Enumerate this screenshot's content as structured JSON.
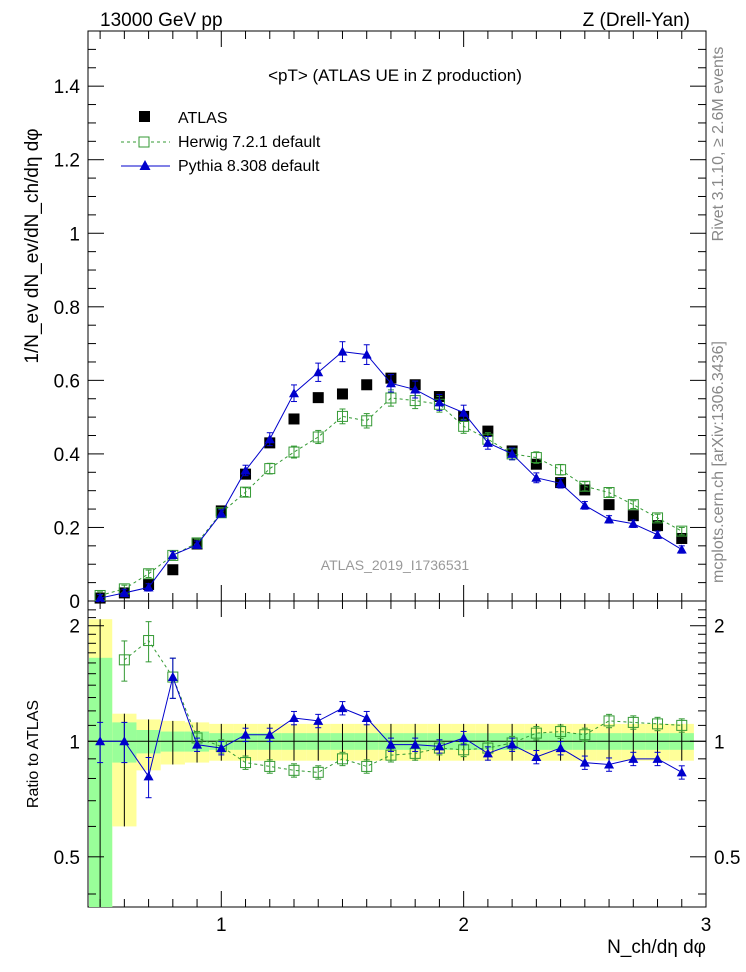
{
  "header": {
    "left": "13000 GeV pp",
    "right": "Z (Drell-Yan)"
  },
  "side_notes": {
    "rivet": "Rivet 3.1.10, ≥ 2.6M events",
    "source": "mcplots.cern.ch [arXiv:1306.3436]"
  },
  "watermark": "ATLAS_2019_I1736531",
  "colors": {
    "data": "#000000",
    "herwig": "#339933",
    "pythia": "#0000cc",
    "band_outer": "#ffff99",
    "band_inner": "#99ff99"
  },
  "chart_data": [
    {
      "type": "scatter",
      "title": "<pT>  (ATLAS UE in Z production)",
      "xlabel": "N_ch/dη dφ",
      "ylabel": "1/N_ev dN_ev/dN_ch/dη dφ",
      "xlim": [
        0.45,
        3.0
      ],
      "ylim": [
        0,
        1.55
      ],
      "yticks": [
        0,
        0.2,
        0.4,
        0.6,
        0.8,
        1,
        1.2,
        1.4
      ],
      "ytick_labels": [
        "0",
        "0.2",
        "0.4",
        "0.6",
        "0.8",
        "1",
        "1.2",
        "1.4"
      ],
      "legend": "top-left",
      "series": [
        {
          "name": "ATLAS",
          "marker": "square",
          "x": [
            0.5,
            0.6,
            0.7,
            0.8,
            0.9,
            1.0,
            1.1,
            1.2,
            1.3,
            1.4,
            1.5,
            1.6,
            1.7,
            1.8,
            1.9,
            2.0,
            2.1,
            2.2,
            2.3,
            2.4,
            2.5,
            2.6,
            2.7,
            2.8,
            2.9
          ],
          "y": [
            0.008,
            0.022,
            0.045,
            0.085,
            0.155,
            0.245,
            0.345,
            0.43,
            0.495,
            0.553,
            0.563,
            0.588,
            0.606,
            0.588,
            0.556,
            0.502,
            0.462,
            0.408,
            0.372,
            0.322,
            0.302,
            0.262,
            0.232,
            0.205,
            0.17
          ]
        },
        {
          "name": "Herwig 7.2.1 default",
          "marker": "open-square",
          "x": [
            0.5,
            0.6,
            0.7,
            0.8,
            0.9,
            1.0,
            1.1,
            1.2,
            1.3,
            1.4,
            1.5,
            1.6,
            1.7,
            1.8,
            1.9,
            2.0,
            2.1,
            2.2,
            2.3,
            2.4,
            2.5,
            2.6,
            2.7,
            2.8,
            2.9
          ],
          "y": [
            0.015,
            0.033,
            0.074,
            0.124,
            0.158,
            0.24,
            0.296,
            0.36,
            0.405,
            0.446,
            0.502,
            0.49,
            0.552,
            0.545,
            0.535,
            0.475,
            0.44,
            0.4,
            0.39,
            0.357,
            0.312,
            0.295,
            0.262,
            0.226,
            0.19
          ]
        },
        {
          "name": "Pythia 8.308 default",
          "marker": "triangle",
          "x": [
            0.5,
            0.6,
            0.7,
            0.8,
            0.9,
            1.0,
            1.1,
            1.2,
            1.3,
            1.4,
            1.5,
            1.6,
            1.7,
            1.8,
            1.9,
            2.0,
            2.1,
            2.2,
            2.3,
            2.4,
            2.5,
            2.6,
            2.7,
            2.8,
            2.9
          ],
          "y": [
            0.008,
            0.022,
            0.037,
            0.125,
            0.153,
            0.238,
            0.355,
            0.44,
            0.565,
            0.622,
            0.678,
            0.67,
            0.592,
            0.575,
            0.54,
            0.512,
            0.43,
            0.4,
            0.335,
            0.32,
            0.26,
            0.222,
            0.21,
            0.18,
            0.14
          ]
        }
      ]
    },
    {
      "type": "scatter",
      "ylabel": "Ratio to ATLAS",
      "xlabel": "N_ch/dη dφ",
      "xlim": [
        0.45,
        3.0
      ],
      "ylim": [
        0.37,
        2.32
      ],
      "log_y": true,
      "xticks": [
        1,
        2,
        3
      ],
      "yticks": [
        0.5,
        1,
        2
      ],
      "ytick_labels": [
        "0.5",
        "1",
        "2"
      ],
      "band": {
        "x_edges": [
          0.45,
          0.55,
          0.65,
          0.75,
          0.85,
          0.95,
          1.05,
          1.15,
          1.25,
          1.35,
          1.45,
          1.55,
          1.65,
          1.75,
          1.85,
          1.95,
          2.05,
          2.15,
          2.25,
          2.35,
          2.45,
          2.55,
          2.65,
          2.75,
          2.85,
          2.95
        ],
        "outer_lo": [
          0.37,
          0.6,
          0.84,
          0.87,
          0.88,
          0.89,
          0.89,
          0.89,
          0.89,
          0.89,
          0.89,
          0.89,
          0.89,
          0.89,
          0.89,
          0.89,
          0.89,
          0.89,
          0.89,
          0.89,
          0.89,
          0.89,
          0.89,
          0.89,
          0.89
        ],
        "outer_hi": [
          2.08,
          1.18,
          1.14,
          1.13,
          1.12,
          1.11,
          1.11,
          1.11,
          1.11,
          1.11,
          1.11,
          1.11,
          1.11,
          1.11,
          1.11,
          1.11,
          1.11,
          1.11,
          1.11,
          1.11,
          1.11,
          1.11,
          1.11,
          1.11,
          1.11
        ],
        "inner_lo": [
          0.37,
          0.88,
          0.93,
          0.94,
          0.94,
          0.95,
          0.95,
          0.95,
          0.95,
          0.95,
          0.95,
          0.95,
          0.95,
          0.95,
          0.95,
          0.95,
          0.95,
          0.95,
          0.95,
          0.95,
          0.95,
          0.95,
          0.95,
          0.95,
          0.95
        ],
        "inner_hi": [
          1.65,
          1.12,
          1.07,
          1.06,
          1.06,
          1.05,
          1.05,
          1.05,
          1.05,
          1.05,
          1.05,
          1.05,
          1.05,
          1.05,
          1.05,
          1.05,
          1.05,
          1.05,
          1.05,
          1.05,
          1.05,
          1.05,
          1.05,
          1.05,
          1.05
        ]
      },
      "series": [
        {
          "name": "Herwig 7.2.1 default",
          "x": [
            0.6,
            0.7,
            0.8,
            0.9,
            1.0,
            1.1,
            1.2,
            1.3,
            1.4,
            1.5,
            1.6,
            1.7,
            1.8,
            1.9,
            2.0,
            2.1,
            2.2,
            2.3,
            2.4,
            2.5,
            2.6,
            2.7,
            2.8,
            2.9
          ],
          "y": [
            1.63,
            1.83,
            1.47,
            1.02,
            0.97,
            0.88,
            0.86,
            0.84,
            0.83,
            0.9,
            0.86,
            0.92,
            0.93,
            0.96,
            0.95,
            0.96,
            0.99,
            1.05,
            1.06,
            1.04,
            1.13,
            1.12,
            1.11,
            1.1
          ]
        },
        {
          "name": "Pythia 8.308 default",
          "x": [
            0.5,
            0.6,
            0.7,
            0.8,
            0.9,
            1.0,
            1.1,
            1.2,
            1.3,
            1.4,
            1.5,
            1.6,
            1.7,
            1.8,
            1.9,
            2.0,
            2.1,
            2.2,
            2.3,
            2.4,
            2.5,
            2.6,
            2.7,
            2.8,
            2.9
          ],
          "y": [
            1.0,
            1.0,
            0.81,
            1.47,
            0.98,
            0.96,
            1.04,
            1.04,
            1.15,
            1.13,
            1.22,
            1.15,
            0.98,
            0.98,
            0.97,
            1.02,
            0.93,
            0.98,
            0.91,
            0.96,
            0.88,
            0.87,
            0.9,
            0.9,
            0.83
          ]
        }
      ]
    }
  ]
}
